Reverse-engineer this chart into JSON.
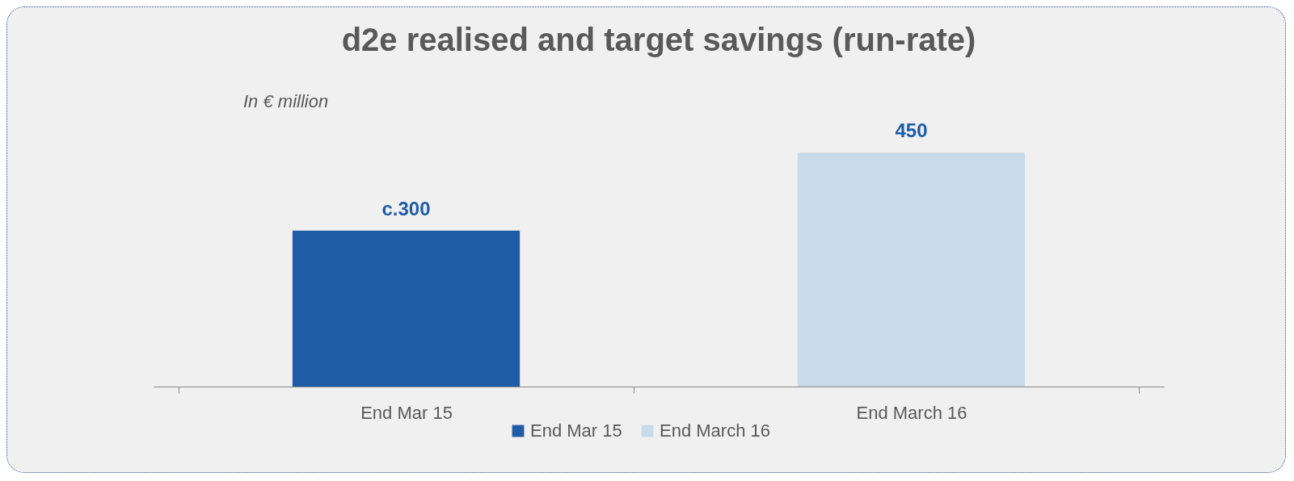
{
  "chart_data": {
    "type": "bar",
    "title": "d2e realised and target savings (run-rate)",
    "subtitle": "In € million",
    "categories": [
      "End Mar 15",
      "End March 16"
    ],
    "stacked": true,
    "series": [
      {
        "name": "End Mar 15",
        "color": "#1f5ca6",
        "values": [
          300,
          null
        ],
        "value_labels": [
          "c.300",
          null
        ]
      },
      {
        "name": "End March 16",
        "color": "#c9dae8",
        "values": [
          null,
          450
        ],
        "value_labels": [
          null,
          "450"
        ]
      }
    ],
    "legend": "bottom"
  }
}
